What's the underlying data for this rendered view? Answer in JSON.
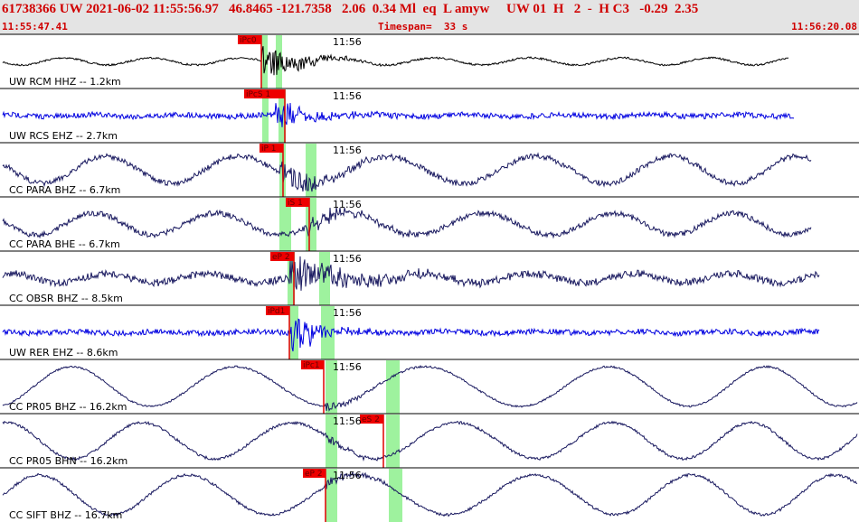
{
  "header": {
    "event": "61738366 UW 2021-06-02 11:55:56.97   46.8465 -121.7358   2.06  0.34 Ml  eq  L amyw     UW 01  H   2  -  H C3   -0.29  2.35",
    "start": "11:55:47.41",
    "timespan": "Timespan=  33 s",
    "end": "11:56:20.08"
  },
  "channels": [
    {
      "label": "UW RCM HHZ -- 1.2km",
      "time_mark": "11:56",
      "picks": [
        "iPc0"
      ]
    },
    {
      "label": "UW RCS EHZ -- 2.7km",
      "time_mark": "11:56",
      "picks": [
        "iPcS 1"
      ]
    },
    {
      "label": "CC PARA BHZ -- 6.7km",
      "time_mark": "11:56",
      "picks": [
        "iP 1"
      ]
    },
    {
      "label": "CC PARA BHE -- 6.7km",
      "time_mark": "11:56",
      "picks": [
        "iS 1"
      ]
    },
    {
      "label": "CC OBSR BHZ -- 8.5km",
      "time_mark": "11:56",
      "picks": [
        "eP 2"
      ]
    },
    {
      "label": "UW RER EHZ -- 8.6km",
      "time_mark": "11:56",
      "picks": [
        "iPd1"
      ]
    },
    {
      "label": "CC PR05 BHZ -- 16.2km",
      "time_mark": "11:56",
      "picks": [
        "iPc1"
      ]
    },
    {
      "label": "CC PR05 BHN -- 16.2km",
      "time_mark": "11:56",
      "picks": [
        "eS 2"
      ]
    },
    {
      "label": "CC SIFT BHZ -- 16.7km",
      "time_mark": "11:56",
      "picks": [
        "eP 2"
      ]
    }
  ]
}
